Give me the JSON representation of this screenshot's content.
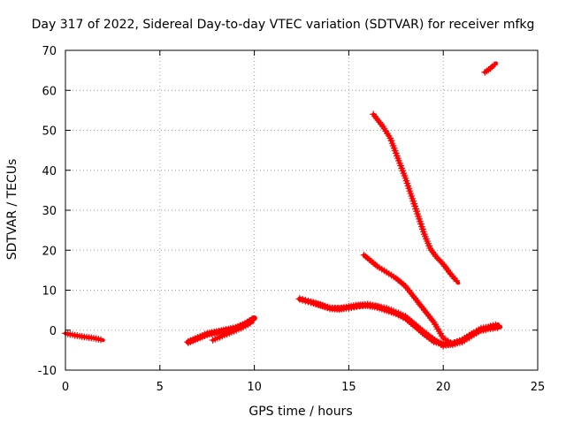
{
  "chart_data": {
    "type": "scatter",
    "title": "Day 317 of 2022, Sidereal Day-to-day VTEC variation (SDTVAR) for receiver mfkg",
    "xlabel": "GPS time / hours",
    "ylabel": "SDTVAR / TECUs",
    "xlim": [
      0,
      25
    ],
    "ylim": [
      -10,
      70
    ],
    "xticks": [
      "0",
      "5",
      "10",
      "15",
      "20",
      "25"
    ],
    "yticks": [
      "-10",
      "0",
      "10",
      "20",
      "30",
      "40",
      "50",
      "60",
      "70"
    ],
    "grid": true,
    "color": "#ff0000",
    "series": [
      {
        "name": "segment-1",
        "width": 2.5,
        "x": [
          0.0,
          0.5,
          1.0,
          1.5,
          2.0
        ],
        "y": [
          -0.8,
          -1.3,
          -1.7,
          -2.0,
          -2.5
        ]
      },
      {
        "name": "segment-2",
        "width": 4,
        "x": [
          6.5,
          7.0,
          7.5,
          8.0,
          8.5,
          9.0,
          9.5,
          10.0
        ],
        "y": [
          -3.0,
          -2.0,
          -1.0,
          -0.5,
          0.0,
          0.5,
          1.5,
          3.0
        ]
      },
      {
        "name": "segment-3",
        "width": 2.5,
        "x": [
          7.8,
          8.3,
          8.8,
          9.3,
          9.9
        ],
        "y": [
          -2.5,
          -1.5,
          -0.5,
          0.5,
          2.0
        ]
      },
      {
        "name": "segment-4",
        "width": 3.5,
        "x": [
          12.4,
          13.0,
          13.5,
          14.0,
          14.5,
          15.0,
          15.5,
          16.0,
          16.5,
          17.0,
          17.5,
          18.0,
          18.5,
          19.0,
          19.5,
          20.0,
          20.5,
          21.0,
          21.5,
          22.0,
          22.5,
          23.0
        ],
        "y": [
          7.8,
          7.0,
          6.3,
          5.5,
          5.3,
          5.8,
          6.2,
          6.2,
          5.8,
          5.0,
          4.2,
          3.0,
          1.0,
          -1.0,
          -2.8,
          -3.5,
          -3.5,
          -2.5,
          -1.0,
          0.0,
          0.5,
          0.8
        ]
      },
      {
        "name": "segment-5",
        "width": 2.5,
        "x": [
          13.0,
          14.0,
          15.0,
          16.0,
          17.0,
          18.0,
          19.0,
          20.0,
          21.0,
          22.0,
          22.8
        ],
        "y": [
          7.0,
          5.5,
          5.5,
          6.5,
          5.5,
          3.5,
          -0.5,
          -4.0,
          -2.5,
          0.5,
          1.0
        ]
      },
      {
        "name": "segment-6",
        "width": 2.5,
        "x": [
          15.8,
          16.5,
          17.0,
          17.5,
          18.0,
          18.5,
          19.0,
          19.5,
          20.0,
          20.5,
          21.0,
          21.5,
          22.0,
          22.5,
          22.9
        ],
        "y": [
          18.8,
          16.0,
          14.5,
          13.0,
          11.0,
          8.0,
          5.0,
          2.0,
          -2.0,
          -3.5,
          -3.0,
          -1.5,
          0.0,
          1.0,
          1.5
        ]
      },
      {
        "name": "segment-7",
        "width": 2.5,
        "x": [
          16.3,
          16.8,
          17.2,
          17.6,
          18.0,
          18.5,
          19.0,
          19.3,
          19.6,
          20.0,
          20.4,
          20.8
        ],
        "y": [
          54.0,
          51.0,
          48.0,
          43.0,
          38.0,
          31.0,
          24.0,
          20.5,
          18.5,
          16.5,
          14.0,
          11.8
        ]
      },
      {
        "name": "segment-8",
        "width": 2.5,
        "x": [
          22.2,
          22.5,
          22.8
        ],
        "y": [
          64.5,
          65.5,
          66.8
        ]
      }
    ]
  }
}
